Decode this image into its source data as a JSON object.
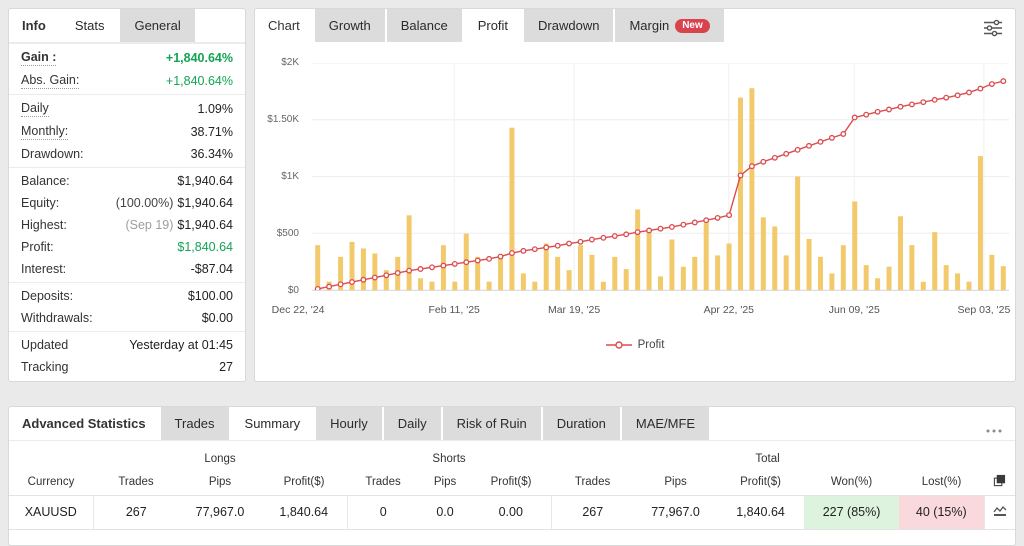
{
  "colors": {
    "accent_green": "#12a454",
    "badge_red": "#d8434e",
    "bar_color": "#f2ca6b",
    "line_color": "#dc4b4e",
    "won_bg": "#ddf3dd",
    "lost_bg": "#f9d9dc"
  },
  "info_panel": {
    "label": "Info",
    "tabs": [
      {
        "label": "Stats"
      },
      {
        "label": "General"
      }
    ],
    "rows": [
      {
        "label": "Gain :",
        "value": "+1,840.64%"
      },
      {
        "label": "Abs. Gain:",
        "value": "+1,840.64%"
      },
      {
        "label": "Daily",
        "value": "1.09%"
      },
      {
        "label": "Monthly:",
        "value": "38.71%"
      },
      {
        "label": "Drawdown:",
        "value": "36.34%"
      },
      {
        "label": "Balance:",
        "value": "$1,940.64"
      },
      {
        "label": "Equity:",
        "prefix": "(100.00%)",
        "value": "$1,940.64"
      },
      {
        "label": "Highest:",
        "prefix": "(Sep 19)",
        "value": "$1,940.64"
      },
      {
        "label": "Profit:",
        "value": "$1,840.64"
      },
      {
        "label": "Interest:",
        "value": "-$87.04"
      },
      {
        "label": "Deposits:",
        "value": "$100.00"
      },
      {
        "label": "Withdrawals:",
        "value": "$0.00"
      },
      {
        "label": "Updated",
        "value": "Yesterday at 01:45"
      },
      {
        "label": "Tracking",
        "value": "27"
      }
    ]
  },
  "chart_panel": {
    "label": "Chart",
    "tabs": [
      {
        "label": "Growth"
      },
      {
        "label": "Balance"
      },
      {
        "label": "Profit"
      },
      {
        "label": "Drawdown"
      },
      {
        "label": "Margin",
        "badge": "New"
      }
    ],
    "legend_label": "Profit"
  },
  "chart_data": {
    "type": "bar",
    "title": "Profit",
    "xlabel": "",
    "ylabel": "",
    "ylim": [
      0,
      2000
    ],
    "grid": true,
    "legend_position": "bottom-center",
    "y_ticks": [
      {
        "label": "$0",
        "value": 0
      },
      {
        "label": "$500",
        "value": 500
      },
      {
        "label": "$1K",
        "value": 1000
      },
      {
        "label": "$1.50K",
        "value": 1500
      },
      {
        "label": "$2K",
        "value": 2000
      }
    ],
    "x_ticks": [
      {
        "label": "Dec 22, '24",
        "pos": -0.02
      },
      {
        "label": "Feb 11, '25",
        "pos": 0.204
      },
      {
        "label": "Mar 19, '25",
        "pos": 0.376
      },
      {
        "label": "Apr 22, '25",
        "pos": 0.598
      },
      {
        "label": "Jun 09, '25",
        "pos": 0.778
      },
      {
        "label": "Sep 03, '25",
        "pos": 0.964
      }
    ],
    "series": [
      {
        "name": "daily-profit-bars",
        "render": "bar",
        "color": "#f2ca6b",
        "values": [
          395,
          73,
          292,
          424,
          366,
          322,
          175,
          292,
          658,
          103,
          73,
          395,
          73,
          497,
          292,
          73,
          307,
          1430,
          146,
          73,
          410,
          292,
          175,
          395,
          310,
          73,
          292,
          184,
          710,
          540,
          120,
          445,
          205,
          292,
          615,
          305,
          410,
          1695,
          1778,
          640,
          560,
          305,
          1000,
          450,
          292,
          146,
          395,
          780,
          219,
          103,
          205,
          650,
          395,
          73,
          510,
          219,
          146,
          73,
          1180,
          310,
          210
        ]
      },
      {
        "name": "Profit",
        "render": "line",
        "color": "#dc4b4e",
        "marker": "open-circle",
        "values": [
          10,
          30,
          50,
          70,
          90,
          110,
          130,
          150,
          170,
          185,
          200,
          215,
          230,
          245,
          260,
          275,
          295,
          325,
          345,
          360,
          375,
          390,
          410,
          425,
          445,
          460,
          475,
          490,
          510,
          525,
          540,
          555,
          575,
          595,
          615,
          635,
          660,
          1010,
          1090,
          1130,
          1165,
          1200,
          1235,
          1270,
          1305,
          1340,
          1375,
          1520,
          1545,
          1570,
          1590,
          1615,
          1635,
          1655,
          1675,
          1695,
          1715,
          1740,
          1775,
          1815,
          1840
        ]
      }
    ]
  },
  "stats_panel": {
    "label": "Advanced Statistics",
    "tabs": [
      "Trades",
      "Summary",
      "Hourly",
      "Daily",
      "Risk of Ruin",
      "Duration",
      "MAE/MFE"
    ],
    "table": {
      "groups": [
        "Longs",
        "Shorts",
        "Total"
      ],
      "columns": [
        "Currency",
        "Trades",
        "Pips",
        "Profit($)",
        "Trades",
        "Pips",
        "Profit($)",
        "Trades",
        "Pips",
        "Profit($)",
        "Won(%)",
        "Lost(%)"
      ],
      "rows": [
        {
          "currency": "XAUUSD",
          "longs_trades": "267",
          "longs_pips": "77,967.0",
          "longs_profit": "1,840.64",
          "shorts_trades": "0",
          "shorts_pips": "0.0",
          "shorts_profit": "0.00",
          "total_trades": "267",
          "total_pips": "77,967.0",
          "total_profit": "1,840.64",
          "won": "227 (85%)",
          "lost": "40 (15%)"
        }
      ]
    }
  }
}
